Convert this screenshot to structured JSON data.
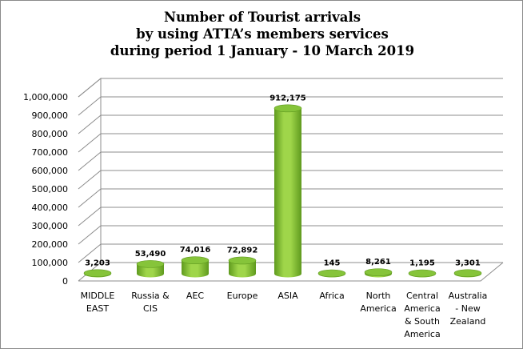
{
  "chart_data": {
    "type": "bar",
    "title_lines": [
      "Number of Tourist arrivals",
      "by using ATTA’s members services",
      "during period 1 January - 10 March 2019"
    ],
    "categories": [
      [
        "MIDDLE",
        "EAST"
      ],
      [
        "Russia &",
        "CIS"
      ],
      [
        "AEC"
      ],
      [
        "Europe"
      ],
      [
        "ASIA"
      ],
      [
        "Africa"
      ],
      [
        "North",
        "America"
      ],
      [
        "Central",
        "America",
        "& South",
        "America"
      ],
      [
        "Australia",
        "- New",
        "Zealand"
      ]
    ],
    "values": [
      3203,
      53490,
      74016,
      72892,
      912175,
      145,
      8261,
      1195,
      3301
    ],
    "value_labels": [
      "3,203",
      "53,490",
      "74,016",
      "72,892",
      "912,175",
      "145",
      "8,261",
      "1,195",
      "3,301"
    ],
    "yticks": [
      "0",
      "100,000",
      "200,000",
      "300,000",
      "400,000",
      "500,000",
      "600,000",
      "700,000",
      "800,000",
      "900,000",
      "1,000,000"
    ],
    "ylim": [
      0,
      1000000
    ],
    "grid": true,
    "legend": "none",
    "colors": {
      "bar_light": "#9fd64a",
      "bar_dark": "#5f9a1e",
      "bar_top": "#86c43a",
      "grid": "#8c8c8c"
    }
  }
}
